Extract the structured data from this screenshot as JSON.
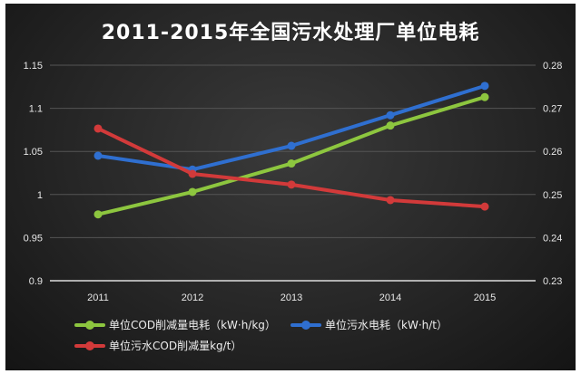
{
  "chart_data": {
    "type": "line",
    "title": "2011-2015年全国污水处理厂单位电耗",
    "categories": [
      "2011",
      "2012",
      "2013",
      "2014",
      "2015"
    ],
    "y_left": {
      "ylim": [
        0.9,
        1.15
      ],
      "ticks": [
        "0.9",
        "0.95",
        "1",
        "1.05",
        "1.1",
        "1.15"
      ]
    },
    "y_right": {
      "ylim": [
        0.23,
        0.28
      ],
      "ticks": [
        "0.23",
        "0.24",
        "0.25",
        "0.26",
        "0.27",
        "0.28"
      ]
    },
    "grid": true,
    "legend_position": "bottom",
    "series": [
      {
        "name": "单位COD削减量电耗（kW·h/kg）",
        "axis": "left",
        "color": "#8dc63f",
        "values": [
          0.977,
          1.003,
          1.036,
          1.08,
          1.113
        ]
      },
      {
        "name": "单位污水电耗（kW·h/t）",
        "axis": "right",
        "color": "#2f6fd0",
        "values": [
          0.259,
          0.2558,
          0.2613,
          0.2684,
          0.2752
        ]
      },
      {
        "name": "单位污水COD削减量kg/t）",
        "axis": "right",
        "color": "#d23a3a",
        "values": [
          0.2653,
          0.2548,
          0.2523,
          0.2487,
          0.2472
        ]
      }
    ]
  }
}
